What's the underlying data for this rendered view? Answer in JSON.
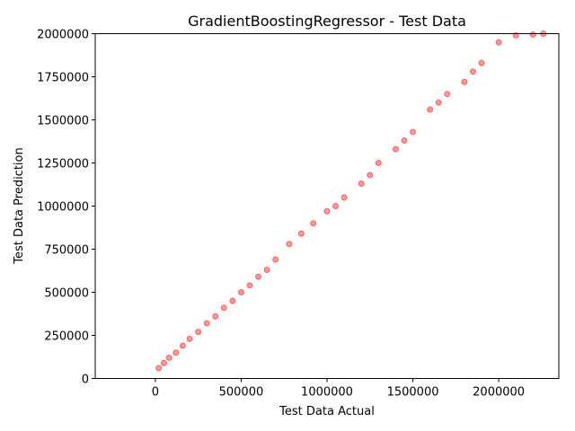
{
  "chart_data": {
    "type": "scatter",
    "title": "GradientBoostingRegressor - Test Data",
    "xlabel": "Test Data Actual",
    "ylabel": "Test Data Prediction",
    "xlim": [
      -350000,
      2350000
    ],
    "ylim": [
      0,
      2000000
    ],
    "xticks": [
      0,
      500000,
      1000000,
      1500000,
      2000000
    ],
    "xtick_labels": [
      "0",
      "500000",
      "1000000",
      "1500000",
      "2000000"
    ],
    "yticks": [
      0,
      250000,
      500000,
      750000,
      1000000,
      1250000,
      1500000,
      1750000,
      2000000
    ],
    "ytick_labels": [
      "0",
      "250000",
      "500000",
      "750000",
      "1000000",
      "1250000",
      "1500000",
      "1750000",
      "2000000"
    ],
    "grid": false,
    "marker_color": "#ff0000",
    "marker_alpha": 0.1,
    "series": [
      {
        "x": [
          20000,
          50000,
          80000,
          120000,
          160000,
          200000,
          250000,
          300000,
          350000,
          400000,
          450000,
          500000,
          550000,
          600000,
          650000,
          700000,
          780000,
          850000,
          920000,
          1000000,
          1050000,
          1100000,
          1200000,
          1250000,
          1300000,
          1400000,
          1450000,
          1500000,
          1600000,
          1650000,
          1700000,
          1800000,
          1850000,
          1900000,
          2000000,
          2100000,
          2200000,
          2260000
        ],
        "y": [
          60000,
          90000,
          120000,
          150000,
          190000,
          230000,
          270000,
          320000,
          360000,
          410000,
          450000,
          500000,
          540000,
          590000,
          630000,
          690000,
          780000,
          840000,
          900000,
          970000,
          1000000,
          1050000,
          1130000,
          1180000,
          1250000,
          1330000,
          1380000,
          1430000,
          1560000,
          1600000,
          1650000,
          1720000,
          1780000,
          1830000,
          1950000,
          1990000,
          1995000,
          2000000
        ]
      }
    ]
  }
}
